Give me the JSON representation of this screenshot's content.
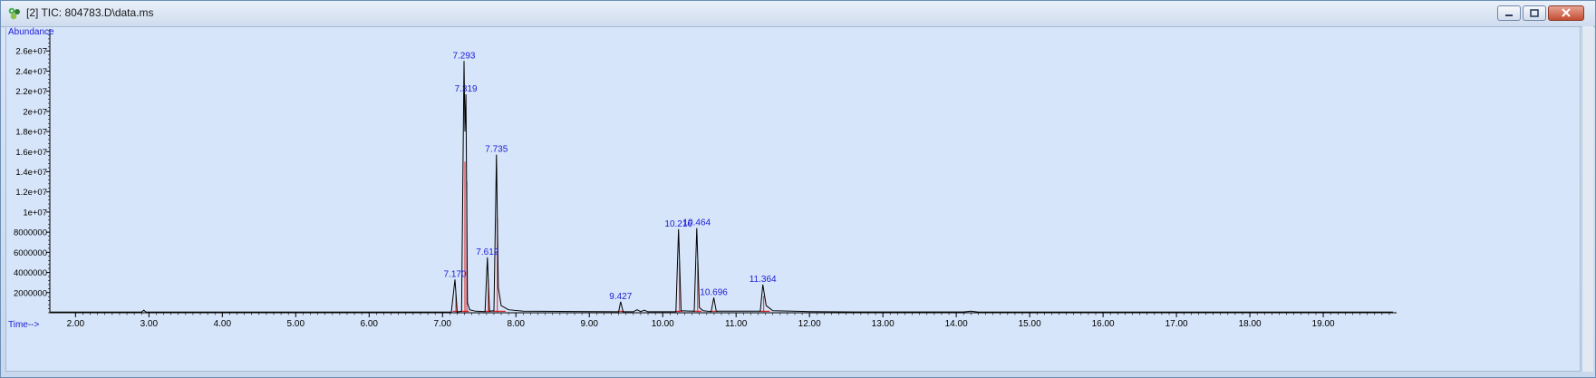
{
  "window": {
    "title": "[2] TIC: 804783.D\\data.ms",
    "icon": "chromatogram-app-icon",
    "controls": [
      "minimize",
      "restore",
      "close"
    ]
  },
  "chart_data": {
    "type": "line",
    "ylabel": "Abundance",
    "xlabel": "Time-->",
    "xlim": [
      1.65,
      19.95
    ],
    "ylim": [
      0,
      28000000
    ],
    "x_ticks": [
      2.0,
      3.0,
      4.0,
      5.0,
      6.0,
      7.0,
      8.0,
      9.0,
      10.0,
      11.0,
      12.0,
      13.0,
      14.0,
      15.0,
      16.0,
      17.0,
      18.0,
      19.0
    ],
    "x_tick_labels": [
      "2.00",
      "3.00",
      "4.00",
      "5.00",
      "6.00",
      "7.00",
      "8.00",
      "9.00",
      "10.00",
      "11.00",
      "12.00",
      "13.00",
      "14.00",
      "15.00",
      "16.00",
      "17.00",
      "18.00",
      "19.00"
    ],
    "y_ticks": [
      2000000,
      4000000,
      6000000,
      8000000,
      10000000,
      12000000,
      14000000,
      16000000,
      18000000,
      20000000,
      22000000,
      24000000,
      26000000
    ],
    "y_tick_labels": [
      "2000000",
      "4000000",
      "6000000",
      "8000000",
      "1e+07",
      "1.2e+07",
      "1.4e+07",
      "1.6e+07",
      "1.8e+07",
      "2e+07",
      "2.2e+07",
      "2.4e+07",
      "2.6e+07"
    ],
    "series": [
      {
        "color": "#000000",
        "points": [
          [
            1.65,
            60000
          ],
          [
            2.9,
            60000
          ],
          [
            2.93,
            250000
          ],
          [
            2.96,
            60000
          ],
          [
            7.12,
            70000
          ],
          [
            7.17,
            3300000
          ],
          [
            7.2,
            80000
          ],
          [
            7.26,
            150000
          ],
          [
            7.293,
            25000000
          ],
          [
            7.305,
            18000000
          ],
          [
            7.319,
            21700000
          ],
          [
            7.34,
            1000000
          ],
          [
            7.37,
            300000
          ],
          [
            7.45,
            150000
          ],
          [
            7.58,
            120000
          ],
          [
            7.612,
            5500000
          ],
          [
            7.64,
            150000
          ],
          [
            7.7,
            200000
          ],
          [
            7.735,
            15700000
          ],
          [
            7.76,
            2500000
          ],
          [
            7.8,
            700000
          ],
          [
            7.9,
            300000
          ],
          [
            8.1,
            150000
          ],
          [
            9.4,
            100000
          ],
          [
            9.427,
            1100000
          ],
          [
            9.46,
            100000
          ],
          [
            9.6,
            100000
          ],
          [
            9.65,
            300000
          ],
          [
            9.7,
            120000
          ],
          [
            9.75,
            250000
          ],
          [
            9.8,
            100000
          ],
          [
            10.18,
            100000
          ],
          [
            10.216,
            8300000
          ],
          [
            10.25,
            200000
          ],
          [
            10.43,
            150000
          ],
          [
            10.464,
            8400000
          ],
          [
            10.5,
            500000
          ],
          [
            10.55,
            200000
          ],
          [
            10.66,
            120000
          ],
          [
            10.696,
            1500000
          ],
          [
            10.73,
            150000
          ],
          [
            11.33,
            150000
          ],
          [
            11.364,
            2800000
          ],
          [
            11.41,
            700000
          ],
          [
            11.5,
            200000
          ],
          [
            12.0,
            120000
          ],
          [
            12.6,
            80000
          ],
          [
            14.1,
            80000
          ],
          [
            14.2,
            150000
          ],
          [
            14.3,
            70000
          ],
          [
            19.95,
            60000
          ]
        ]
      }
    ],
    "baseline_color": "#e00000",
    "baselines": [
      [
        7.14,
        7.21
      ],
      [
        7.25,
        7.36
      ],
      [
        7.57,
        7.66
      ],
      [
        7.68,
        7.86
      ],
      [
        9.39,
        9.47
      ],
      [
        10.17,
        10.27
      ],
      [
        10.42,
        10.53
      ],
      [
        10.65,
        10.75
      ],
      [
        11.32,
        11.46
      ]
    ],
    "peak_labels": [
      {
        "rt": 7.17,
        "label": "7.170",
        "y": 3300000
      },
      {
        "rt": 7.293,
        "label": "7.293",
        "y": 25000000
      },
      {
        "rt": 7.319,
        "label": "7.319",
        "y": 21700000
      },
      {
        "rt": 7.612,
        "label": "7.612",
        "y": 5500000
      },
      {
        "rt": 7.735,
        "label": "7.735",
        "y": 15700000
      },
      {
        "rt": 9.427,
        "label": "9.427",
        "y": 1100000
      },
      {
        "rt": 10.216,
        "label": "10.216",
        "y": 8300000
      },
      {
        "rt": 10.464,
        "label": "10.464",
        "y": 8400000
      },
      {
        "rt": 10.696,
        "label": "10.696",
        "y": 1500000
      },
      {
        "rt": 11.364,
        "label": "11.364",
        "y": 2800000
      }
    ],
    "label_color": "#1c1cd8"
  }
}
